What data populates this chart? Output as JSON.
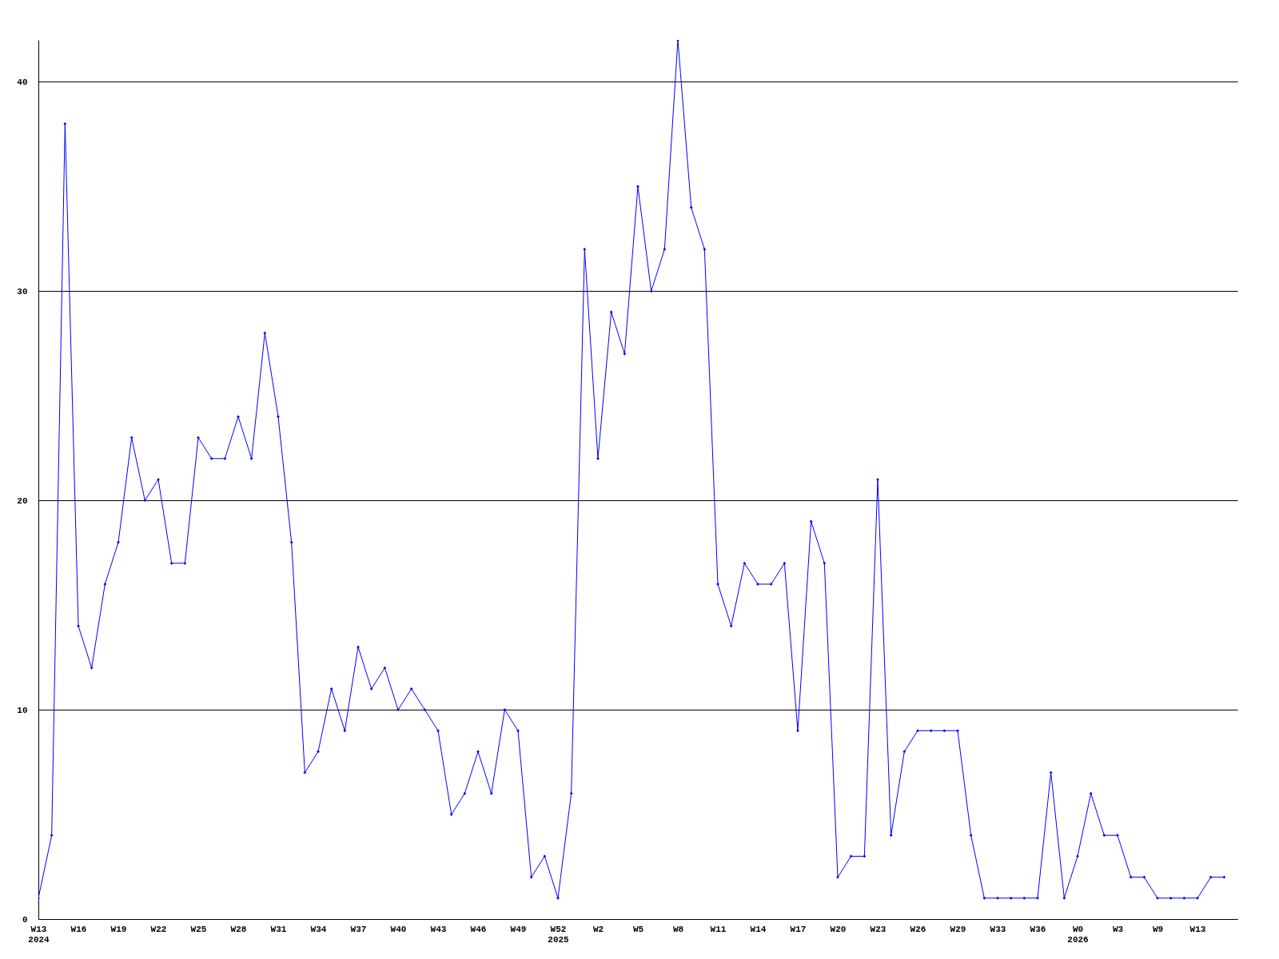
{
  "chart_data": {
    "type": "line",
    "categories": [
      "W13\n2024",
      null,
      null,
      "W16",
      null,
      null,
      "W19",
      null,
      null,
      "W22",
      null,
      null,
      "W25",
      null,
      null,
      "W28",
      null,
      null,
      "W31",
      null,
      null,
      "W34",
      null,
      null,
      "W37",
      null,
      null,
      "W40",
      null,
      null,
      "W43",
      null,
      null,
      "W46",
      null,
      null,
      "W49",
      null,
      null,
      "W52\n2025",
      null,
      null,
      "W2",
      null,
      null,
      "W5",
      null,
      null,
      "W8",
      null,
      null,
      "W11",
      null,
      null,
      "W14",
      null,
      null,
      "W17",
      null,
      null,
      "W20",
      null,
      null,
      "W23",
      null,
      null,
      "W26",
      null,
      null,
      "W29",
      null,
      null,
      "W33",
      null,
      null,
      "W36",
      null,
      null,
      "W0\n2026",
      null,
      null,
      "W3",
      null,
      null,
      "W9",
      null,
      null,
      "W13",
      null,
      null
    ],
    "series": [
      {
        "color": "#0000ff",
        "values": [
          1,
          4,
          38,
          14,
          12,
          16,
          18,
          23,
          20,
          21,
          17,
          17,
          23,
          22,
          22,
          24,
          22,
          28,
          24,
          18,
          7,
          8,
          11,
          9,
          13,
          11,
          12,
          10,
          11,
          10,
          9,
          5,
          6,
          8,
          6,
          10,
          9,
          2,
          3,
          1,
          6,
          32,
          22,
          29,
          27,
          35,
          30,
          32,
          42,
          34,
          32,
          16,
          14,
          17,
          16,
          16,
          17,
          9,
          19,
          17,
          2,
          3,
          3,
          21,
          4,
          8,
          9,
          9,
          9,
          9,
          4,
          1,
          1,
          1,
          1,
          1,
          7,
          1,
          3,
          6,
          4,
          4,
          2,
          2,
          1,
          1,
          1,
          1,
          2,
          2
        ]
      }
    ],
    "ylim": [
      0,
      42
    ],
    "yticks": [
      0,
      10,
      20,
      30,
      40
    ],
    "grid": "y",
    "marker": "diamond",
    "line_style": "solid"
  }
}
